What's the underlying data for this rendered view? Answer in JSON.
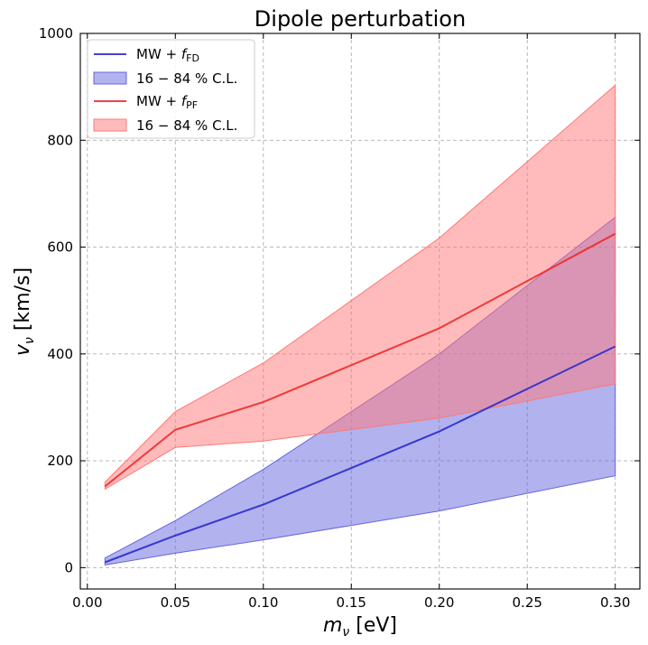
{
  "chart_data": {
    "type": "line",
    "title": "Dipole perturbation",
    "xlabel": {
      "symbol": "m",
      "subscript": "ν",
      "unit": " [eV]"
    },
    "ylabel": {
      "symbol": "v",
      "subscript": "ν",
      "unit": " [km/s]"
    },
    "xlim": [
      -0.004,
      0.314
    ],
    "ylim": [
      -40,
      1000
    ],
    "x_ticks": [
      0.0,
      0.05,
      0.1,
      0.15,
      0.2,
      0.25,
      0.3
    ],
    "x_tick_labels": [
      "0.00",
      "0.05",
      "0.10",
      "0.15",
      "0.20",
      "0.25",
      "0.30"
    ],
    "y_ticks": [
      0,
      200,
      400,
      600,
      800,
      1000
    ],
    "y_tick_labels": [
      "0",
      "200",
      "400",
      "600",
      "800",
      "1000"
    ],
    "grid": true,
    "legend_position": "top-left",
    "x": [
      0.01,
      0.05,
      0.1,
      0.2,
      0.3
    ],
    "series": [
      {
        "name": "MW + f_FD",
        "legend_main": "MW + ",
        "legend_symbol": "f",
        "legend_sub": "FD",
        "band_name": "16 − 84 % C.L.",
        "color": "#2222cc",
        "band_color": "#6666dd",
        "values": [
          10,
          60,
          118,
          255,
          414
        ],
        "lower": [
          5,
          27,
          52,
          106,
          172
        ],
        "upper": [
          18,
          88,
          184,
          400,
          656
        ]
      },
      {
        "name": "MW + f_PF",
        "legend_main": "MW + ",
        "legend_symbol": "f",
        "legend_sub": "PF",
        "band_name": "16 − 84 % C.L.",
        "color": "#ee2222",
        "band_color": "#ff7777",
        "values": [
          152,
          258,
          310,
          448,
          625
        ],
        "lower": [
          147,
          225,
          237,
          280,
          344
        ],
        "upper": [
          160,
          292,
          383,
          617,
          903
        ]
      }
    ]
  }
}
